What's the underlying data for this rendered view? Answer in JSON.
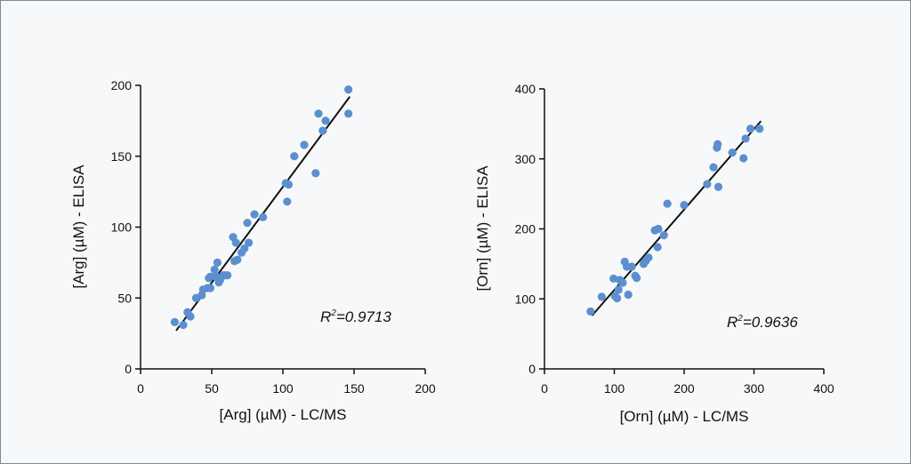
{
  "colors": {
    "point": "#5b8fcf",
    "axis": "#111111",
    "fit_line": "#111111",
    "background": "#f7f8f9",
    "border": "#7f8c96"
  },
  "chart_data": [
    {
      "type": "scatter",
      "title": "",
      "xlabel": "[Arg] (µM) - LC/MS",
      "ylabel": "[Arg] (µM) - ELISA",
      "xlim": [
        0,
        200
      ],
      "ylim": [
        0,
        200
      ],
      "xticks": [
        "0",
        "50",
        "100",
        "150",
        "200"
      ],
      "yticks": [
        "0",
        "50",
        "100",
        "150",
        "200"
      ],
      "annotation": "R²=0.9713",
      "annotation_parts": {
        "base": "R",
        "sup": "2",
        "rest": "=0.9713"
      },
      "fit_line": [
        [
          25,
          27
        ],
        [
          147,
          192
        ]
      ],
      "points": [
        [
          24,
          33
        ],
        [
          30,
          31
        ],
        [
          33,
          40
        ],
        [
          35,
          37
        ],
        [
          39,
          50
        ],
        [
          43,
          52
        ],
        [
          44,
          56
        ],
        [
          47,
          57
        ],
        [
          48,
          64
        ],
        [
          49,
          65
        ],
        [
          49,
          57
        ],
        [
          52,
          70
        ],
        [
          53,
          65
        ],
        [
          54,
          75
        ],
        [
          55,
          61
        ],
        [
          56,
          63
        ],
        [
          58,
          66
        ],
        [
          59,
          66
        ],
        [
          61,
          66
        ],
        [
          65,
          93
        ],
        [
          66,
          76
        ],
        [
          67,
          89
        ],
        [
          68,
          77
        ],
        [
          71,
          82
        ],
        [
          73,
          85
        ],
        [
          75,
          103
        ],
        [
          76,
          89
        ],
        [
          80,
          109
        ],
        [
          86,
          107
        ],
        [
          102,
          131
        ],
        [
          103,
          118
        ],
        [
          104,
          130
        ],
        [
          108,
          150
        ],
        [
          115,
          158
        ],
        [
          123,
          138
        ],
        [
          125,
          180
        ],
        [
          128,
          168
        ],
        [
          130,
          175
        ],
        [
          146,
          197
        ],
        [
          146,
          180
        ]
      ]
    },
    {
      "type": "scatter",
      "title": "",
      "xlabel": "[Orn] (µM) - LC/MS",
      "ylabel": "[Orn] (µM) - ELISA",
      "xlim": [
        0,
        400
      ],
      "ylim": [
        0,
        400
      ],
      "xticks": [
        "0",
        "100",
        "200",
        "300",
        "400"
      ],
      "yticks": [
        "0",
        "100",
        "200",
        "300",
        "400"
      ],
      "annotation": "R²=0.9636",
      "annotation_parts": {
        "base": "R",
        "sup": "2",
        "rest": "=0.9636"
      },
      "fit_line": [
        [
          68,
          76
        ],
        [
          310,
          354
        ]
      ],
      "points": [
        [
          66,
          82
        ],
        [
          82,
          103
        ],
        [
          99,
          129
        ],
        [
          101,
          104
        ],
        [
          104,
          101
        ],
        [
          106,
          113
        ],
        [
          108,
          127
        ],
        [
          112,
          123
        ],
        [
          115,
          153
        ],
        [
          118,
          146
        ],
        [
          120,
          106
        ],
        [
          125,
          146
        ],
        [
          130,
          133
        ],
        [
          132,
          130
        ],
        [
          142,
          150
        ],
        [
          145,
          154
        ],
        [
          149,
          159
        ],
        [
          158,
          198
        ],
        [
          162,
          174
        ],
        [
          163,
          200
        ],
        [
          171,
          191
        ],
        [
          176,
          236
        ],
        [
          200,
          234
        ],
        [
          233,
          264
        ],
        [
          242,
          288
        ],
        [
          247,
          316
        ],
        [
          248,
          321
        ],
        [
          249,
          260
        ],
        [
          269,
          309
        ],
        [
          285,
          301
        ],
        [
          288,
          329
        ],
        [
          295,
          343
        ],
        [
          308,
          343
        ]
      ]
    }
  ]
}
